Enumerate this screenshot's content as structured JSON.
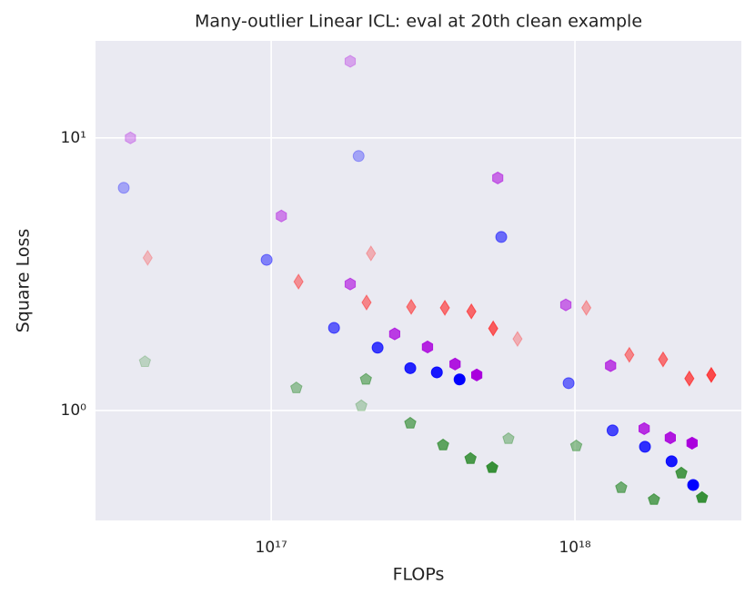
{
  "chart_data": {
    "type": "scatter",
    "title": "Many-outlier Linear ICL: eval at 20th clean example",
    "xlabel": "FLOPs",
    "ylabel": "Square Loss",
    "xscale": "log",
    "yscale": "log",
    "grid": true,
    "background": "#eaeaf2",
    "xlim": [
      2.64e+16,
      3.53e+18
    ],
    "ylim": [
      0.395,
      22.7
    ],
    "xticks": [
      {
        "value": 1e+17,
        "label": "10¹⁷"
      },
      {
        "value": 1e+18,
        "label": "10¹⁸"
      }
    ],
    "yticks": [
      {
        "value": 1,
        "label": "10⁰"
      },
      {
        "value": 10,
        "label": "10¹"
      }
    ],
    "series": [
      {
        "marker": "circle",
        "color": "#0000ff",
        "x": [
          3.27e+16,
          1.94e+17,
          9.66e+16,
          5.72e+17,
          1.61e+17,
          2.24e+17,
          2.87e+17,
          3.51e+17,
          4.17e+17,
          9.53e+17,
          1.33e+18,
          1.7e+18,
          2.08e+18,
          2.45e+18
        ],
        "values": [
          6.56,
          8.58,
          3.57,
          4.33,
          2.01,
          1.7,
          1.43,
          1.38,
          1.3,
          1.26,
          0.845,
          0.736,
          0.651,
          0.533
        ],
        "opacities": [
          0.3,
          0.3,
          0.45,
          0.55,
          0.6,
          0.75,
          0.85,
          0.9,
          1,
          0.55,
          0.7,
          0.8,
          0.9,
          1
        ]
      },
      {
        "marker": "hexagon",
        "color": "#aa00dd",
        "x": [
          3.44e+16,
          1.82e+17,
          1.08e+17,
          5.57e+17,
          1.82e+17,
          2.55e+17,
          3.27e+17,
          4.03e+17,
          4.75e+17,
          9.33e+17,
          1.31e+18,
          1.69e+18,
          2.06e+18,
          2.43e+18
        ],
        "values": [
          10.0,
          19.1,
          5.17,
          7.13,
          2.91,
          1.91,
          1.71,
          1.48,
          1.35,
          2.44,
          1.46,
          0.858,
          0.794,
          0.759
        ],
        "opacities": [
          0.3,
          0.3,
          0.45,
          0.55,
          0.6,
          0.75,
          0.85,
          0.9,
          1,
          0.55,
          0.7,
          0.8,
          0.9,
          1
        ]
      },
      {
        "marker": "diamond",
        "color": "#ff2020",
        "x": [
          3.92e+16,
          2.13e+17,
          1.23e+17,
          2.06e+17,
          2.89e+17,
          3.73e+17,
          4.56e+17,
          5.38e+17,
          6.47e+17,
          1.09e+18,
          1.51e+18,
          1.95e+18,
          2.38e+18,
          2.81e+18
        ],
        "values": [
          3.63,
          3.77,
          2.97,
          2.49,
          2.4,
          2.38,
          2.31,
          2.0,
          1.83,
          2.38,
          1.6,
          1.54,
          1.31,
          1.35
        ],
        "opacities": [
          0.25,
          0.3,
          0.45,
          0.5,
          0.55,
          0.6,
          0.65,
          0.7,
          0.3,
          0.35,
          0.5,
          0.6,
          0.7,
          0.8
        ]
      },
      {
        "marker": "pentagon",
        "color": "#2e8b2e",
        "x": [
          3.84e+16,
          1.98e+17,
          1.21e+17,
          2.05e+17,
          2.87e+17,
          3.68e+17,
          4.53e+17,
          5.34e+17,
          6.04e+17,
          1.01e+18,
          1.42e+18,
          1.82e+18,
          2.24e+18,
          2.62e+18
        ],
        "values": [
          1.51,
          1.04,
          1.21,
          1.3,
          0.898,
          0.747,
          0.666,
          0.617,
          0.788,
          0.741,
          0.521,
          0.471,
          0.589,
          0.479
        ],
        "opacities": [
          0.25,
          0.3,
          0.45,
          0.55,
          0.65,
          0.75,
          0.85,
          0.95,
          0.4,
          0.5,
          0.65,
          0.75,
          0.85,
          0.95
        ]
      }
    ]
  }
}
